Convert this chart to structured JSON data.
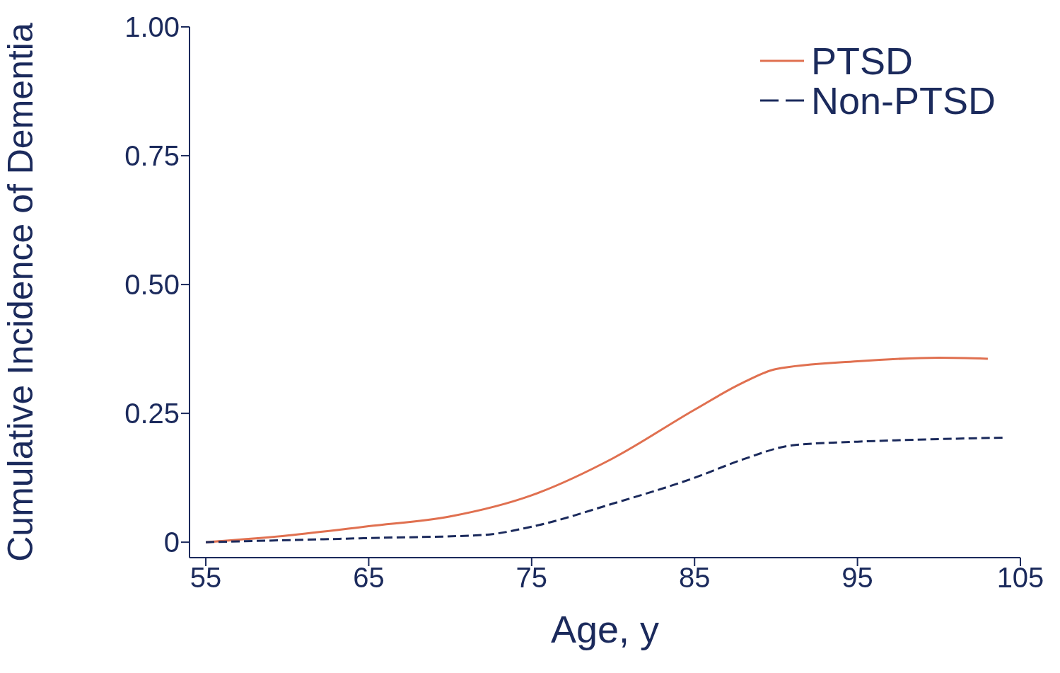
{
  "chart_data": {
    "type": "line",
    "xlabel": "Age, y",
    "ylabel": "Cumulative Incidence  of Dementia",
    "xlim": [
      54,
      105
    ],
    "xticks": [
      55,
      65,
      75,
      85,
      95,
      105
    ],
    "ylim": [
      -0.03,
      1.0
    ],
    "yticks": [
      {
        "value": 0,
        "label": "0"
      },
      {
        "value": 0.25,
        "label": "0.25"
      },
      {
        "value": 0.5,
        "label": "0.50"
      },
      {
        "value": 0.75,
        "label": "0.75"
      },
      {
        "value": 1,
        "label": "1.00"
      }
    ],
    "legend": "top right",
    "grid": false,
    "marker": "none",
    "series": [
      {
        "name": "PTSD",
        "color": "#e07050",
        "line_style": "solid",
        "x": [
          55,
          60,
          65,
          70,
          75,
          80,
          85,
          88,
          90,
          95,
          100,
          103
        ],
        "values": [
          0,
          0.013,
          0.031,
          0.05,
          0.091,
          0.163,
          0.257,
          0.31,
          0.336,
          0.351,
          0.358,
          0.356
        ]
      },
      {
        "name": "Non-PTSD",
        "color": "#1b2a5c",
        "line_style": "dashed",
        "x": [
          55,
          65,
          72,
          75,
          80,
          85,
          88,
          91,
          95,
          100,
          104
        ],
        "values": [
          0,
          0.008,
          0.014,
          0.03,
          0.075,
          0.125,
          0.161,
          0.188,
          0.195,
          0.2,
          0.203
        ]
      }
    ]
  }
}
